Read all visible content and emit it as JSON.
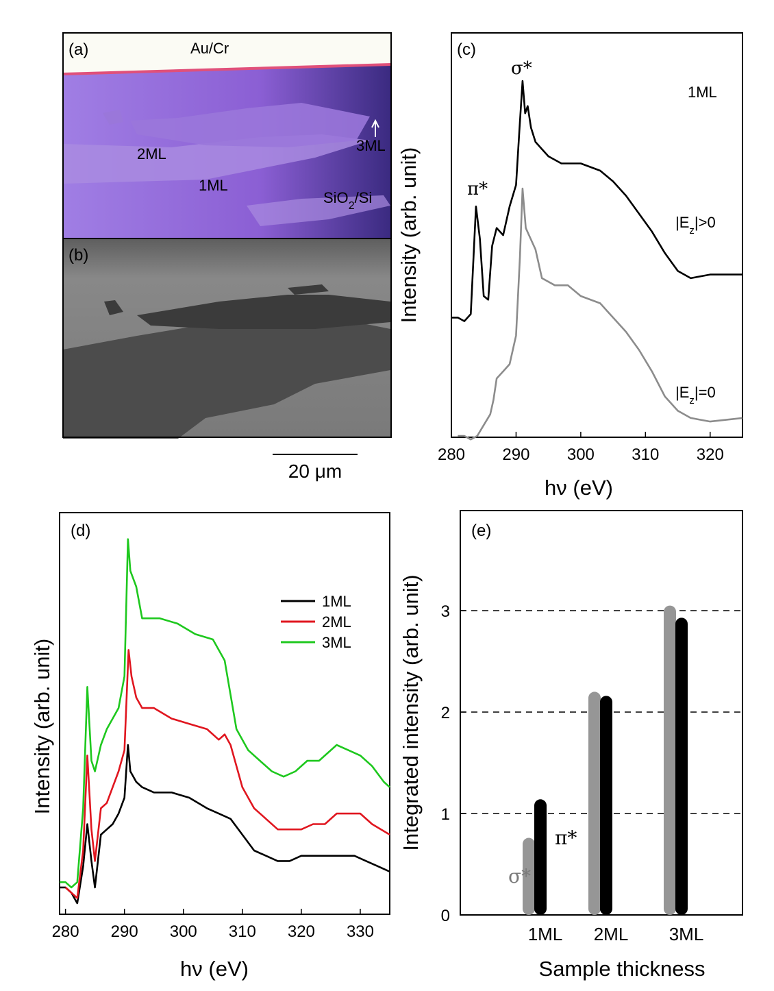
{
  "panel_a": {
    "label": "(a)",
    "labels": [
      "Au/Cr",
      "2ML",
      "1ML",
      "3ML",
      "SiO2/Si"
    ],
    "colors": {
      "substrate": "#8f63d6",
      "flake_1ml": "#a98be0",
      "flake_2ml": "#9a77da",
      "electrode": "#fbfbf4"
    }
  },
  "panel_b": {
    "label": "(b)",
    "scalebar": "20 μm",
    "colors": {
      "background": "#7b7b7b",
      "flake_1ml": "#4c4c4c",
      "flake_2ml": "#3b3b3b"
    }
  },
  "chart_data": [
    {
      "panel": "(c)",
      "type": "line",
      "xlabel": "hν (eV)",
      "ylabel": "Intensity (arb. unit)",
      "xlim": [
        280,
        325
      ],
      "xticks": [
        280,
        290,
        300,
        310,
        320
      ],
      "annotations": [
        "σ*",
        "π*",
        "1ML"
      ],
      "series": [
        {
          "name": "|Ez|>0",
          "color": "#000000",
          "x": [
            280,
            281,
            282,
            283,
            283.8,
            284.4,
            285.0,
            285.7,
            286.3,
            287.0,
            288.0,
            289.0,
            290.0,
            290.5,
            291.0,
            291.4,
            291.8,
            292.3,
            293.0,
            294.0,
            295.0,
            297.0,
            300.0,
            303.0,
            305.0,
            307.0,
            309.0,
            311.0,
            313.0,
            315.0,
            317.0,
            320.0,
            325.0
          ],
          "y": [
            0.33,
            0.33,
            0.32,
            0.34,
            0.64,
            0.55,
            0.39,
            0.38,
            0.53,
            0.58,
            0.56,
            0.64,
            0.7,
            0.85,
            0.99,
            0.9,
            0.92,
            0.86,
            0.82,
            0.8,
            0.78,
            0.76,
            0.76,
            0.74,
            0.71,
            0.67,
            0.62,
            0.57,
            0.51,
            0.46,
            0.44,
            0.45,
            0.45
          ]
        },
        {
          "name": "|Ez|=0",
          "color": "#8c8c8c",
          "x": [
            281,
            282,
            283,
            284,
            285,
            286,
            286.5,
            287.0,
            288.0,
            289.0,
            290.0,
            290.6,
            291.0,
            291.5,
            292.0,
            293.0,
            294.0,
            296.0,
            298.0,
            300.0,
            303.0,
            305.0,
            307.0,
            309.0,
            311.0,
            313.0,
            315.0,
            317.0,
            320.0,
            325.0
          ],
          "y": [
            0.0,
            0.0,
            -0.01,
            0.0,
            0.03,
            0.06,
            0.1,
            0.16,
            0.18,
            0.2,
            0.28,
            0.5,
            0.69,
            0.58,
            0.56,
            0.52,
            0.44,
            0.42,
            0.42,
            0.39,
            0.37,
            0.33,
            0.29,
            0.24,
            0.18,
            0.11,
            0.07,
            0.05,
            0.04,
            0.05
          ]
        }
      ]
    },
    {
      "panel": "(d)",
      "type": "line",
      "xlabel": "hν (eV)",
      "ylabel": "Intensity (arb. unit)",
      "xlim": [
        279,
        335
      ],
      "xticks": [
        280,
        290,
        300,
        310,
        320,
        330
      ],
      "legend_position": "top-right",
      "series": [
        {
          "name": "1ML",
          "color": "#000000",
          "x": [
            279,
            280,
            281,
            282,
            283,
            283.7,
            284.4,
            285.0,
            286.0,
            287.0,
            288.0,
            289.0,
            290.0,
            290.6,
            291.0,
            292.0,
            293.0,
            295.0,
            298.0,
            301.0,
            304.0,
            306.0,
            308.0,
            310.0,
            312.0,
            314.0,
            316.0,
            318.0,
            320.0,
            323.0,
            326.0,
            329.0,
            331.0,
            333.0,
            335.0
          ],
          "y": [
            0.03,
            0.03,
            0.02,
            0.0,
            0.07,
            0.15,
            0.08,
            0.03,
            0.13,
            0.14,
            0.15,
            0.17,
            0.2,
            0.3,
            0.25,
            0.23,
            0.22,
            0.21,
            0.21,
            0.2,
            0.18,
            0.17,
            0.16,
            0.13,
            0.1,
            0.09,
            0.08,
            0.08,
            0.09,
            0.09,
            0.09,
            0.09,
            0.08,
            0.07,
            0.06
          ]
        },
        {
          "name": "2ML",
          "color": "#e0161f",
          "x": [
            280,
            281,
            282,
            283,
            283.7,
            284.4,
            285.0,
            286.0,
            287.0,
            288.0,
            289.0,
            290.0,
            290.7,
            291.2,
            292.0,
            293.0,
            295.0,
            298.0,
            301.0,
            304.0,
            306.0,
            307.0,
            308.0,
            310.0,
            312.0,
            314.0,
            316.0,
            318.0,
            320.0,
            322.0,
            324.0,
            326.0,
            328.0,
            330.0,
            332.0,
            335.0
          ],
          "y": [
            0.03,
            0.02,
            0.01,
            0.1,
            0.28,
            0.14,
            0.08,
            0.18,
            0.19,
            0.22,
            0.25,
            0.29,
            0.48,
            0.43,
            0.39,
            0.37,
            0.37,
            0.35,
            0.34,
            0.33,
            0.31,
            0.32,
            0.3,
            0.22,
            0.18,
            0.16,
            0.14,
            0.14,
            0.14,
            0.15,
            0.15,
            0.17,
            0.17,
            0.17,
            0.15,
            0.13
          ]
        },
        {
          "name": "3ML",
          "color": "#1ec81e",
          "x": [
            279,
            280,
            281,
            282,
            283,
            283.7,
            284.4,
            285.0,
            286.0,
            287.0,
            288.0,
            289.0,
            290.0,
            290.6,
            291.0,
            292.0,
            293.0,
            294.0,
            296.0,
            299.0,
            302.0,
            305.0,
            307.0,
            309.0,
            311.0,
            313.0,
            315.0,
            317.0,
            319.0,
            321.0,
            323.0,
            326.0,
            328.0,
            330.0,
            332.0,
            334.0,
            335.0
          ],
          "y": [
            0.04,
            0.04,
            0.03,
            0.04,
            0.18,
            0.41,
            0.27,
            0.25,
            0.3,
            0.33,
            0.35,
            0.37,
            0.43,
            0.69,
            0.63,
            0.6,
            0.54,
            0.54,
            0.54,
            0.53,
            0.51,
            0.5,
            0.46,
            0.33,
            0.29,
            0.27,
            0.25,
            0.24,
            0.25,
            0.27,
            0.27,
            0.3,
            0.29,
            0.28,
            0.26,
            0.23,
            0.22
          ]
        }
      ]
    },
    {
      "panel": "(e)",
      "type": "bar",
      "xlabel": "Sample thickness",
      "ylabel": "Integrated intensity (arb. unit)",
      "categories": [
        "1ML",
        "2ML",
        "3ML"
      ],
      "ylim": [
        0,
        3.3
      ],
      "yticks": [
        0,
        1,
        2,
        3
      ],
      "reference_lines": [
        1,
        2,
        3
      ],
      "series": [
        {
          "name": "σ*",
          "color": "#969696",
          "values": [
            0.76,
            2.2,
            3.05
          ]
        },
        {
          "name": "π*",
          "color": "#000000",
          "values": [
            1.14,
            2.16,
            2.93
          ]
        }
      ]
    }
  ]
}
